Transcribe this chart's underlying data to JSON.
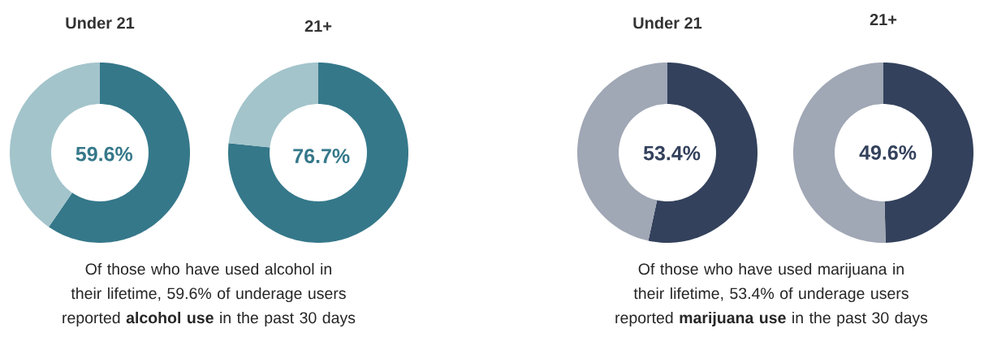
{
  "chart_data": [
    {
      "type": "donut",
      "title": "Under 21",
      "categories": [
        null,
        null
      ],
      "values": [
        59.6,
        40.4
      ],
      "colors": [
        "#35788a",
        "#a3c4cb"
      ],
      "value_labels": [
        "59.6%",
        null
      ],
      "annotations": [
        "Of those who have used alcohol in their lifetime, 59.6% of underage users reported **alcohol use** in the past 30 days"
      ]
    },
    {
      "type": "donut",
      "title": "21+",
      "categories": [
        null,
        null
      ],
      "values": [
        76.7,
        23.3
      ],
      "colors": [
        "#35788a",
        "#a3c4cb"
      ],
      "value_labels": [
        "76.7%",
        null
      ]
    },
    {
      "type": "donut",
      "title": "Under 21",
      "categories": [
        null,
        null
      ],
      "values": [
        53.4,
        46.6
      ],
      "colors": [
        "#33415c",
        "#a0a7b5"
      ],
      "value_labels": [
        "53.4%",
        null
      ],
      "annotations": [
        "Of those who have used marijuana in their lifetime, 53.4% of underage users reported **marijuana use** in the past 30 days"
      ]
    },
    {
      "type": "donut",
      "title": "21+",
      "categories": [
        null,
        null
      ],
      "values": [
        49.6,
        50.4
      ],
      "colors": [
        "#33415c",
        "#a0a7b5"
      ],
      "value_labels": [
        "49.6%",
        null
      ]
    }
  ]
}
